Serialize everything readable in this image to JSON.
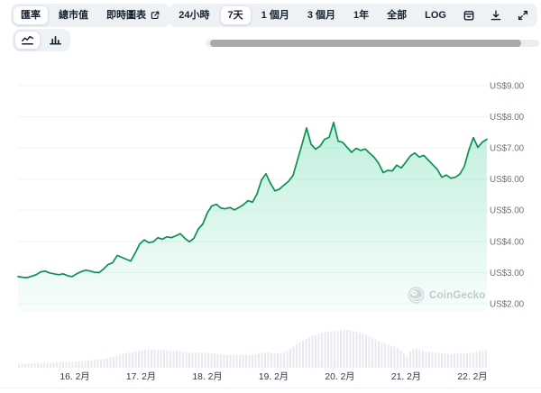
{
  "tabs": {
    "items": [
      {
        "label": "匯率",
        "selected": true
      },
      {
        "label": "總市值",
        "selected": false
      },
      {
        "label": "即時圖表",
        "selected": false,
        "has_external_link_icon": true
      }
    ]
  },
  "ranges": {
    "items": [
      {
        "label": "24小時",
        "selected": false
      },
      {
        "label": "7天",
        "selected": true
      },
      {
        "label": "1 個月",
        "selected": false
      },
      {
        "label": "3 個月",
        "selected": false
      },
      {
        "label": "1年",
        "selected": false
      },
      {
        "label": "全部",
        "selected": false
      },
      {
        "label": "LOG",
        "selected": false
      }
    ]
  },
  "icons": {
    "external_link": "⧉",
    "calendar": "🗓",
    "download": "⭳",
    "fullscreen": "⤢",
    "line_chart": "📈",
    "bar_chart": "📊",
    "gecko_logo": "🦎"
  },
  "chart_type_toggle": {
    "options": [
      {
        "icon": "line-chart-icon",
        "selected": true
      },
      {
        "icon": "bar-chart-icon",
        "selected": false
      }
    ]
  },
  "watermark": {
    "label": "CoinGecko"
  },
  "chart_data": {
    "type": "line",
    "title": "",
    "legend": [],
    "grid": true,
    "currency_prefix": "US$",
    "ylim": [
      2,
      9
    ],
    "y_axis": {
      "labels": [
        "US$9.00",
        "US$8.00",
        "US$7.00",
        "US$6.00",
        "US$5.00",
        "US$4.00",
        "US$3.00",
        "US$2.00"
      ],
      "values": [
        9,
        8,
        7,
        6,
        5,
        4,
        3,
        2
      ]
    },
    "x_axis": {
      "labels": [
        "16. 2月",
        "17. 2月",
        "18. 2月",
        "19. 2月",
        "20. 2月",
        "21. 2月",
        "22. 2月"
      ]
    },
    "series": [
      {
        "name": "price_usd",
        "values": [
          2.87,
          2.85,
          2.84,
          2.88,
          2.93,
          3.02,
          3.05,
          2.99,
          2.96,
          2.93,
          2.96,
          2.9,
          2.87,
          2.96,
          3.03,
          3.08,
          3.05,
          3.01,
          3.0,
          3.12,
          3.26,
          3.32,
          3.55,
          3.49,
          3.43,
          3.37,
          3.63,
          3.92,
          4.05,
          3.96,
          3.99,
          4.12,
          4.07,
          4.15,
          4.12,
          4.18,
          4.25,
          4.1,
          3.99,
          4.1,
          4.4,
          4.56,
          4.92,
          5.14,
          5.19,
          5.07,
          5.05,
          5.09,
          5.01,
          5.09,
          5.18,
          5.31,
          5.26,
          5.52,
          5.97,
          6.17,
          5.86,
          5.62,
          5.68,
          5.81,
          5.93,
          6.12,
          6.62,
          7.12,
          7.64,
          7.12,
          6.96,
          7.06,
          7.28,
          7.34,
          7.82,
          7.22,
          7.18,
          7.02,
          6.86,
          6.99,
          6.92,
          6.97,
          6.83,
          6.7,
          6.5,
          6.21,
          6.28,
          6.26,
          6.45,
          6.36,
          6.54,
          6.74,
          6.84,
          6.71,
          6.76,
          6.61,
          6.46,
          6.31,
          6.06,
          6.13,
          6.03,
          6.06,
          6.16,
          6.41,
          6.93,
          7.33,
          7.02,
          7.19,
          7.28
        ]
      }
    ],
    "volume": {
      "name": "volume_relative",
      "values": [
        5,
        5,
        5,
        5,
        6,
        6,
        6,
        6,
        6,
        7,
        7,
        7,
        7,
        8,
        8,
        9,
        9,
        10,
        10,
        11,
        12,
        13,
        15,
        17,
        18,
        19,
        20,
        21,
        22,
        21,
        22,
        21,
        22,
        21,
        20,
        21,
        20,
        19,
        19,
        18,
        19,
        18,
        18,
        17,
        17,
        16,
        16,
        15,
        16,
        15,
        16,
        15,
        16,
        17,
        18,
        19,
        18,
        17,
        18,
        19,
        22,
        26,
        30,
        33,
        36,
        38,
        40,
        42,
        43,
        44,
        44,
        45,
        46,
        46,
        45,
        44,
        42,
        40,
        38,
        35,
        32,
        30,
        28,
        26,
        24,
        20,
        12,
        22,
        24,
        22,
        20,
        19,
        19,
        18,
        18,
        17,
        17,
        17,
        18,
        18,
        18,
        19,
        20,
        21,
        22
      ]
    },
    "colors": {
      "line": "#0d9152",
      "fill": "#16c784",
      "volume": "#e7eaf1",
      "gridline": "#f2f3f5",
      "y_label": "#6b7380",
      "x_label": "#2e3947"
    }
  }
}
